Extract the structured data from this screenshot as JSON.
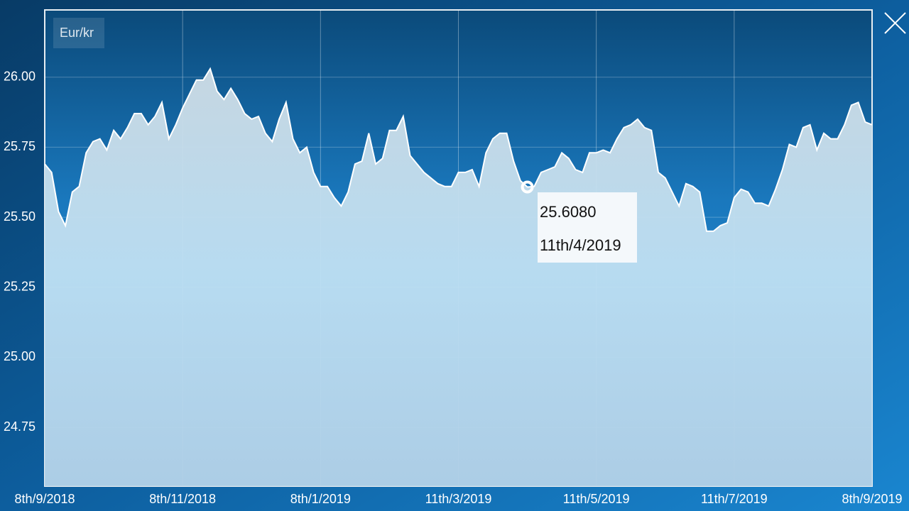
{
  "chart_data": {
    "type": "area",
    "categories": [
      "8th/9/2018",
      null,
      null,
      null,
      null,
      null,
      null,
      null,
      null,
      null,
      null,
      null,
      null,
      null,
      null,
      null,
      null,
      null,
      null,
      null,
      "8th/11/2018",
      null,
      null,
      null,
      null,
      null,
      null,
      null,
      null,
      null,
      null,
      null,
      null,
      null,
      null,
      null,
      null,
      null,
      null,
      null,
      "8th/1/2019",
      null,
      null,
      null,
      null,
      null,
      null,
      null,
      null,
      null,
      null,
      null,
      null,
      null,
      null,
      null,
      null,
      null,
      null,
      null,
      "11th/3/2019",
      null,
      null,
      null,
      null,
      null,
      null,
      null,
      null,
      null,
      null,
      null,
      null,
      null,
      null,
      null,
      null,
      null,
      null,
      null,
      "11th/5/2019",
      null,
      null,
      null,
      null,
      null,
      null,
      null,
      null,
      null,
      null,
      null,
      null,
      null,
      null,
      null,
      null,
      null,
      null,
      null,
      "11th/7/2019",
      null,
      null,
      null,
      null,
      null,
      null,
      null,
      null,
      null,
      null,
      null,
      null,
      null,
      null,
      null,
      null,
      null,
      null,
      null,
      "8th/9/2019"
    ],
    "series": [
      {
        "name": "Eur/kr",
        "color": "#ffffff",
        "values": [
          25.69,
          25.66,
          25.52,
          25.47,
          25.59,
          25.61,
          25.73,
          25.77,
          25.78,
          25.74,
          25.81,
          25.78,
          25.82,
          25.87,
          25.87,
          25.83,
          25.86,
          25.91,
          25.78,
          25.83,
          25.89,
          25.94,
          25.99,
          25.99,
          26.03,
          25.95,
          25.92,
          25.96,
          25.92,
          25.87,
          25.85,
          25.86,
          25.8,
          25.77,
          25.85,
          25.91,
          25.78,
          25.73,
          25.75,
          25.66,
          25.61,
          25.61,
          25.57,
          25.54,
          25.59,
          25.69,
          25.7,
          25.8,
          25.69,
          25.71,
          25.81,
          25.81,
          25.86,
          25.72,
          25.69,
          25.66,
          25.64,
          25.62,
          25.61,
          25.61,
          25.66,
          25.66,
          25.67,
          25.61,
          25.73,
          25.78,
          25.8,
          25.8,
          25.7,
          25.63,
          25.608,
          25.61,
          25.66,
          25.67,
          25.68,
          25.73,
          25.71,
          25.67,
          25.66,
          25.73,
          25.73,
          25.74,
          25.73,
          25.78,
          25.82,
          25.83,
          25.85,
          25.82,
          25.81,
          25.66,
          25.64,
          25.59,
          25.54,
          25.62,
          25.61,
          25.59,
          25.45,
          25.45,
          25.47,
          25.48,
          25.57,
          25.6,
          25.59,
          25.55,
          25.55,
          25.54,
          25.6,
          25.67,
          25.76,
          25.75,
          25.82,
          25.83,
          25.74,
          25.8,
          25.78,
          25.78,
          25.83,
          25.9,
          25.91,
          25.84,
          25.83
        ]
      }
    ],
    "ylim": [
      24.54,
      26.24
    ],
    "yticks": [
      24.75,
      {
        "value": 25,
        "label": "25.00"
      },
      25.25,
      {
        "value": 25.5,
        "label": "25.50"
      },
      25.75,
      {
        "value": 26,
        "label": "26.00"
      }
    ],
    "grid": true,
    "tooltip_value": "25.6080",
    "tooltip_date": "11th/4/2019"
  }
}
